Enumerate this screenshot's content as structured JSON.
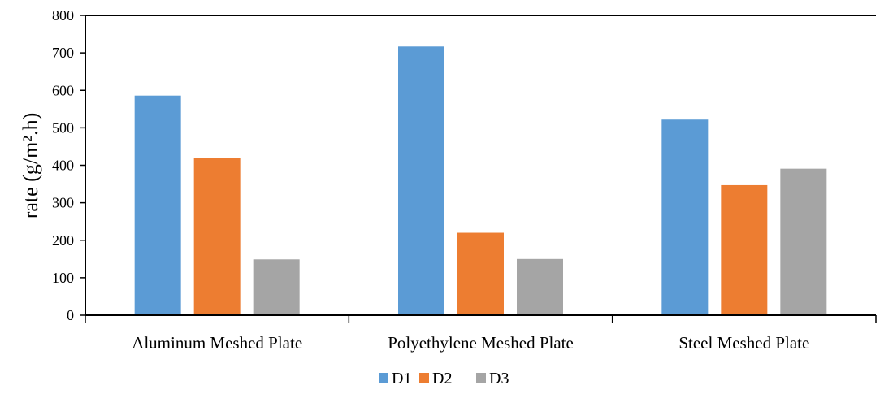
{
  "chart_data": {
    "type": "bar",
    "title": "",
    "xlabel": "",
    "ylabel": "rate (g/m².h)",
    "ylim": [
      0,
      800
    ],
    "yticks": [
      0,
      100,
      200,
      300,
      400,
      500,
      600,
      700,
      800
    ],
    "categories": [
      "Aluminum Meshed Plate",
      "Polyethylene Meshed Plate",
      "Steel Meshed Plate"
    ],
    "series": [
      {
        "name": "D1",
        "values": [
          586,
          717,
          522
        ],
        "color": "#5b9bd5"
      },
      {
        "name": "D2",
        "values": [
          420,
          220,
          347
        ],
        "color": "#ed7d31"
      },
      {
        "name": "D3",
        "values": [
          149,
          150,
          391
        ],
        "color": "#a5a5a5"
      }
    ],
    "grid": false,
    "legend_position": "bottom"
  }
}
